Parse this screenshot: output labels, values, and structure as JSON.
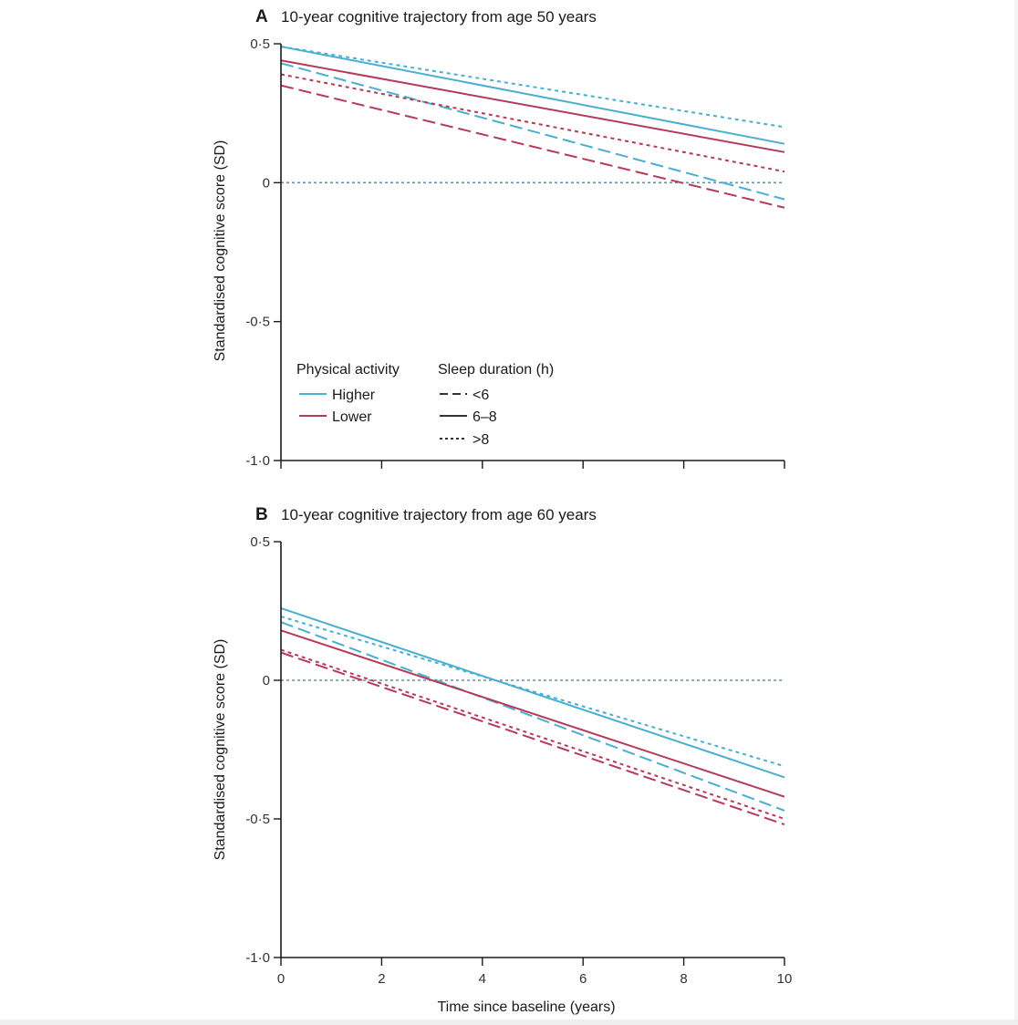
{
  "chart_data": [
    {
      "type": "line",
      "panel_letter": "A",
      "title": "10-year cognitive trajectory from age 50 years",
      "xlabel": "",
      "ylabel": "Standardised cognitive score (SD)",
      "xlim": [
        0,
        10
      ],
      "ylim": [
        -1.0,
        0.5
      ],
      "yticks": [
        0.5,
        0,
        -0.5,
        -1.0
      ],
      "ytick_labels": [
        "0·5",
        "0",
        "-0·5",
        "-1·0"
      ],
      "xticks": [
        0,
        2,
        4,
        6,
        8,
        10
      ],
      "xtick_labels": [],
      "reference_line": 0,
      "series": [
        {
          "name": "Higher, <6",
          "activity": "Higher",
          "sleep": "<6",
          "x": [
            0,
            10
          ],
          "y": [
            0.43,
            -0.06
          ]
        },
        {
          "name": "Higher, 6-8",
          "activity": "Higher",
          "sleep": "6-8",
          "x": [
            0,
            10
          ],
          "y": [
            0.49,
            0.14
          ]
        },
        {
          "name": "Higher, >8",
          "activity": "Higher",
          "sleep": ">8",
          "x": [
            0,
            10
          ],
          "y": [
            0.49,
            0.2
          ]
        },
        {
          "name": "Lower, <6",
          "activity": "Lower",
          "sleep": "<6",
          "x": [
            0,
            10
          ],
          "y": [
            0.35,
            -0.09
          ]
        },
        {
          "name": "Lower, 6-8",
          "activity": "Lower",
          "sleep": "6-8",
          "x": [
            0,
            10
          ],
          "y": [
            0.44,
            0.11
          ]
        },
        {
          "name": "Lower, >8",
          "activity": "Lower",
          "sleep": ">8",
          "x": [
            0,
            10
          ],
          "y": [
            0.39,
            0.04
          ]
        }
      ],
      "legend": {
        "placement": "bottom-left",
        "activity_title": "Physical activity",
        "activity_items": [
          {
            "label": "Higher",
            "color": "#4aaed1"
          },
          {
            "label": "Lower",
            "color": "#b53a5a"
          }
        ],
        "sleep_title": "Sleep duration (h)",
        "sleep_items": [
          {
            "label": "<6",
            "style": "dashed"
          },
          {
            "label": "6–8",
            "style": "solid"
          },
          {
            "label": ">8",
            "style": "dotted"
          }
        ]
      }
    },
    {
      "type": "line",
      "panel_letter": "B",
      "title": "10-year cognitive trajectory from age 60 years",
      "xlabel": "Time since baseline (years)",
      "ylabel": "Standardised cognitive score (SD)",
      "xlim": [
        0,
        10
      ],
      "ylim": [
        -1.0,
        0.5
      ],
      "yticks": [
        0.5,
        0,
        -0.5,
        -1.0
      ],
      "ytick_labels": [
        "0·5",
        "0",
        "-0·5",
        "-1·0"
      ],
      "xticks": [
        0,
        2,
        4,
        6,
        8,
        10
      ],
      "xtick_labels": [
        "0",
        "2",
        "4",
        "6",
        "8",
        "10"
      ],
      "reference_line": 0,
      "series": [
        {
          "name": "Higher, <6",
          "activity": "Higher",
          "sleep": "<6",
          "x": [
            0,
            10
          ],
          "y": [
            0.21,
            -0.47
          ]
        },
        {
          "name": "Higher, 6-8",
          "activity": "Higher",
          "sleep": "6-8",
          "x": [
            0,
            10
          ],
          "y": [
            0.26,
            -0.35
          ]
        },
        {
          "name": "Higher, >8",
          "activity": "Higher",
          "sleep": ">8",
          "x": [
            0,
            10
          ],
          "y": [
            0.23,
            -0.31
          ]
        },
        {
          "name": "Lower, <6",
          "activity": "Lower",
          "sleep": "<6",
          "x": [
            0,
            10
          ],
          "y": [
            0.1,
            -0.52
          ]
        },
        {
          "name": "Lower, 6-8",
          "activity": "Lower",
          "sleep": "6-8",
          "x": [
            0,
            10
          ],
          "y": [
            0.18,
            -0.42
          ]
        },
        {
          "name": "Lower, >8",
          "activity": "Lower",
          "sleep": ">8",
          "x": [
            0,
            10
          ],
          "y": [
            0.11,
            -0.5
          ]
        }
      ]
    }
  ],
  "colors": {
    "Higher": "#4aaed1",
    "Lower": "#b53a5a",
    "reference": "#6b8ea0",
    "axis": "#1a1a1a"
  }
}
